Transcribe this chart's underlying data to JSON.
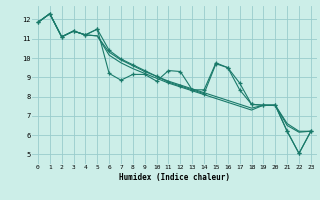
{
  "xlabel": "Humidex (Indice chaleur)",
  "bg_color": "#cceee8",
  "grid_color": "#99cccc",
  "line_color": "#1a7a6a",
  "xlim": [
    -0.5,
    23.5
  ],
  "ylim": [
    4.5,
    12.7
  ],
  "xticks": [
    0,
    1,
    2,
    3,
    4,
    5,
    6,
    7,
    8,
    9,
    10,
    11,
    12,
    13,
    14,
    15,
    16,
    17,
    18,
    19,
    20,
    21,
    22,
    23
  ],
  "yticks": [
    5,
    6,
    7,
    8,
    9,
    10,
    11,
    12
  ],
  "line1_x": [
    0,
    1,
    2,
    3,
    4,
    5,
    6,
    7,
    8,
    9,
    10,
    11,
    12,
    13,
    14,
    15,
    16,
    17,
    18,
    19,
    20,
    21,
    22,
    23
  ],
  "line1_y": [
    11.85,
    12.3,
    11.1,
    11.4,
    11.2,
    11.5,
    9.2,
    8.85,
    9.15,
    9.15,
    8.8,
    9.35,
    9.3,
    8.35,
    8.35,
    9.75,
    9.5,
    8.35,
    7.6,
    7.55,
    7.55,
    6.2,
    5.05,
    6.2
  ],
  "line2_x": [
    0,
    1,
    2,
    3,
    4,
    5,
    6,
    7,
    8,
    9,
    10,
    11,
    12,
    13,
    14,
    15,
    16,
    17,
    18,
    19,
    20,
    21,
    22,
    23
  ],
  "line2_y": [
    11.85,
    12.3,
    11.1,
    11.4,
    11.2,
    11.15,
    10.15,
    9.75,
    9.45,
    9.2,
    8.95,
    8.7,
    8.5,
    8.3,
    8.1,
    7.9,
    7.7,
    7.5,
    7.3,
    7.55,
    7.55,
    6.5,
    6.15,
    6.2
  ],
  "line3_x": [
    0,
    1,
    2,
    3,
    4,
    5,
    6,
    7,
    8,
    9,
    10,
    11,
    12,
    13,
    14,
    15,
    16,
    17,
    18,
    19,
    20,
    21,
    22,
    23
  ],
  "line3_y": [
    11.85,
    12.3,
    11.1,
    11.4,
    11.2,
    11.15,
    10.3,
    9.9,
    9.6,
    9.3,
    9.05,
    8.8,
    8.6,
    8.4,
    8.2,
    8.0,
    7.8,
    7.6,
    7.4,
    7.55,
    7.55,
    6.6,
    6.2,
    6.2
  ],
  "line4_x": [
    0,
    1,
    2,
    3,
    4,
    5,
    6,
    7,
    8,
    9,
    10,
    11,
    12,
    13,
    14,
    15,
    16,
    17,
    18,
    19,
    20,
    21,
    22,
    23
  ],
  "line4_y": [
    11.85,
    12.3,
    11.1,
    11.4,
    11.2,
    11.5,
    10.4,
    9.95,
    9.65,
    9.35,
    9.05,
    8.75,
    8.55,
    8.35,
    8.15,
    9.7,
    9.5,
    8.7,
    7.6,
    7.55,
    7.55,
    6.2,
    5.05,
    6.2
  ]
}
